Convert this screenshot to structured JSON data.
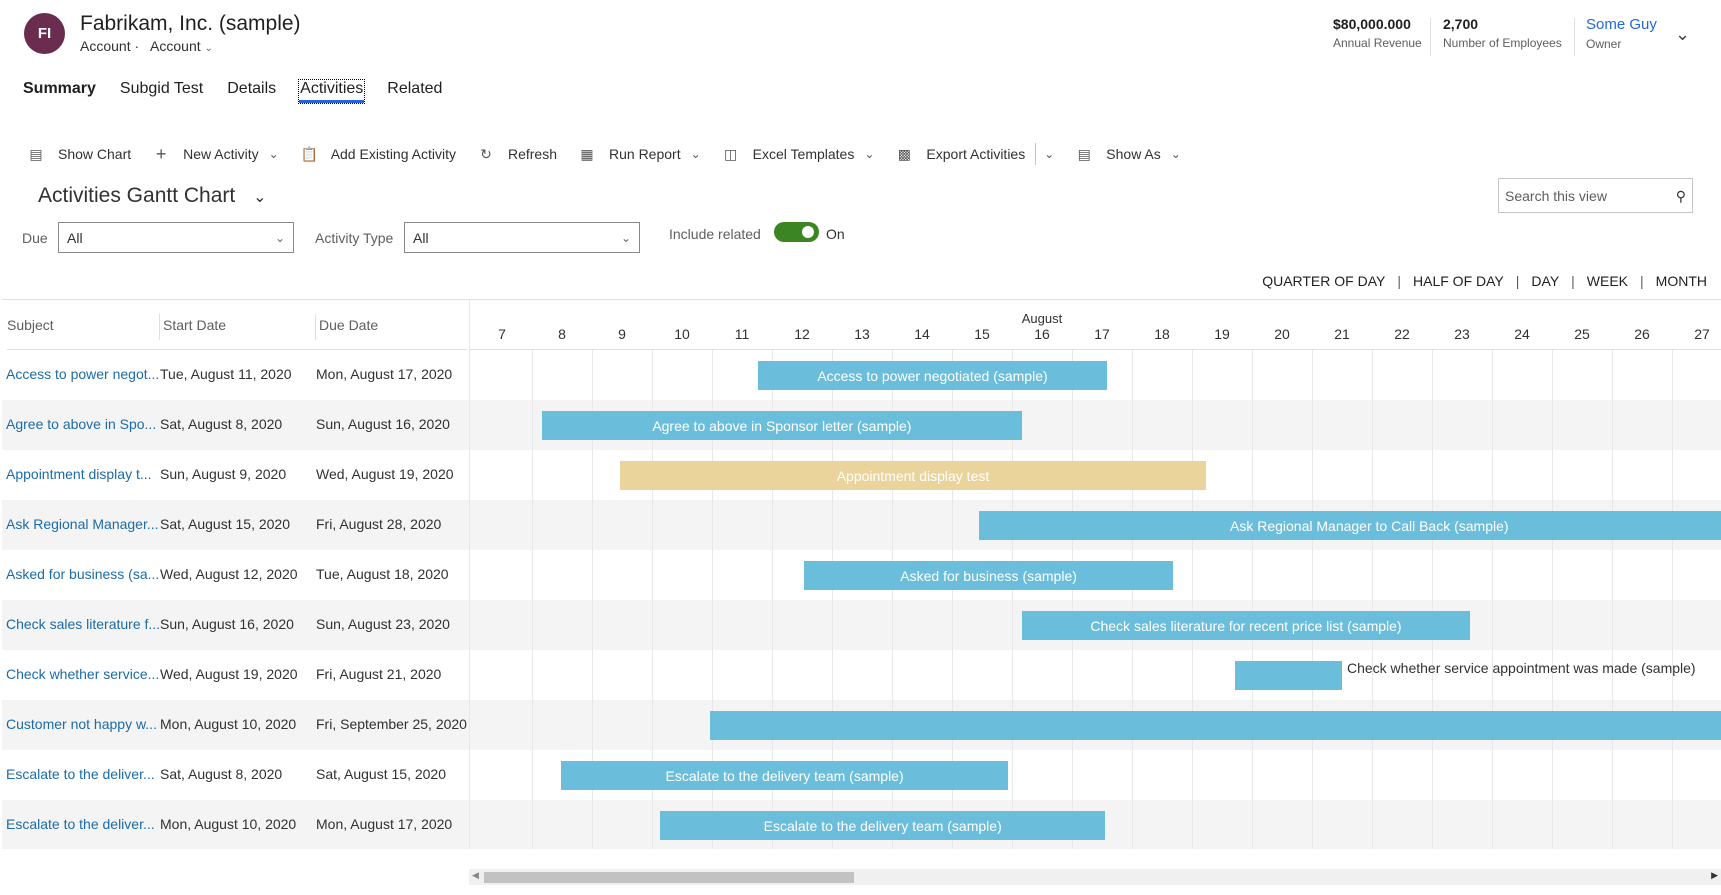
{
  "header": {
    "avatar_initials": "FI",
    "title": "Fabrikam, Inc. (sample)",
    "entity": "Account ·",
    "form": "Account",
    "kpis": [
      {
        "value": "$80,000.000",
        "label": "Annual Revenue"
      },
      {
        "value": "2,700",
        "label": "Number of Employees"
      },
      {
        "value": "Some Guy",
        "label": "Owner"
      }
    ]
  },
  "tabs": [
    "Summary",
    "Subgid Test",
    "Details",
    "Activities",
    "Related"
  ],
  "active_tab": "Activities",
  "toolbar": [
    {
      "icon": "chart-icon",
      "label": "Show Chart"
    },
    {
      "icon": "plus-icon",
      "label": "New Activity",
      "chevron": true
    },
    {
      "icon": "clipboard-add-icon",
      "label": "Add Existing Activity"
    },
    {
      "icon": "refresh-icon",
      "label": "Refresh"
    },
    {
      "icon": "report-icon",
      "label": "Run Report",
      "chevron": true
    },
    {
      "icon": "excel-template-icon",
      "label": "Excel Templates",
      "chevron": true
    },
    {
      "icon": "excel-export-icon",
      "label": "Export Activities"
    },
    {
      "icon": "chart-icon",
      "label": "Show As",
      "chevron": true
    }
  ],
  "view": {
    "title": "Activities Gantt Chart",
    "search_placeholder": "Search this view",
    "filters": {
      "due_label": "Due",
      "due_value": "All",
      "type_label": "Activity Type",
      "type_value": "All",
      "include_related_label": "Include related",
      "include_related_state": "On"
    },
    "scales": [
      "QUARTER OF DAY",
      "HALF OF DAY",
      "DAY",
      "WEEK",
      "MONTH"
    ]
  },
  "colors": {
    "task": "#6bbedb",
    "appointment": "#ebd39c",
    "link": "#1b6ba9",
    "toggle": "#3b8524"
  },
  "chart_data": {
    "type": "gantt",
    "columns": [
      "Subject",
      "Start Date",
      "Due Date"
    ],
    "month_label": "August",
    "x_ticks": [
      "7",
      "8",
      "9",
      "10",
      "11",
      "12",
      "13",
      "14",
      "15",
      "16",
      "17",
      "18",
      "19",
      "20",
      "21",
      "22",
      "23",
      "24",
      "25",
      "26",
      "27"
    ],
    "x_unit": "day of August 2020",
    "rows": [
      {
        "subject": "Access to power negot...",
        "start": "Tue, August 11, 2020",
        "due": "Mon, August 17, 2020",
        "bar_label": "Access to power negotiated (sample)",
        "bar_start": 11.77,
        "bar_end": 17.58,
        "kind": "task"
      },
      {
        "subject": "Agree to above in Spo...",
        "start": "Sat, August 8, 2020",
        "due": "Sun, August 16, 2020",
        "bar_label": "Agree to above in Sponsor letter (sample)",
        "bar_start": 8.17,
        "bar_end": 16.16,
        "kind": "task"
      },
      {
        "subject": "Appointment display t...",
        "start": "Sun, August 9, 2020",
        "due": "Wed, August 19, 2020",
        "bar_label": "Appointment display test",
        "bar_start": 9.47,
        "bar_end": 19.23,
        "kind": "appointment"
      },
      {
        "subject": "Ask Regional Manager...",
        "start": "Sat, August 15, 2020",
        "due": "Fri, August 28, 2020",
        "bar_label": "Ask Regional Manager to Call Back (sample)",
        "bar_start": 15.45,
        "bar_end": 28.46,
        "kind": "task"
      },
      {
        "subject": "Asked for business (sa...",
        "start": "Wed, August 12, 2020",
        "due": "Tue, August 18, 2020",
        "bar_label": "Asked for business (sample)",
        "bar_start": 12.54,
        "bar_end": 18.68,
        "kind": "task"
      },
      {
        "subject": "Check sales literature f...",
        "start": "Sun, August 16, 2020",
        "due": "Sun, August 23, 2020",
        "bar_label": "Check sales literature for recent price list (sample)",
        "bar_start": 16.16,
        "bar_end": 23.64,
        "kind": "task"
      },
      {
        "subject": "Check whether service...",
        "start": "Wed, August 19, 2020",
        "due": "Fri, August 21, 2020",
        "bar_label": "Check whether service appointment was made (sample)",
        "bar_start": 19.71,
        "bar_end": 21.5,
        "kind": "task",
        "label_outside": true
      },
      {
        "subject": "Customer not happy w...",
        "start": "Mon, August 10, 2020",
        "due": "Fri, September 25, 2020",
        "bar_label": "",
        "bar_start": 10.97,
        "bar_end": 56.5,
        "kind": "task"
      },
      {
        "subject": "Escalate to the deliver...",
        "start": "Sat, August 8, 2020",
        "due": "Sat, August 15, 2020",
        "bar_label": "Escalate to the delivery team (sample)",
        "bar_start": 8.48,
        "bar_end": 15.94,
        "kind": "task"
      },
      {
        "subject": "Escalate to the deliver...",
        "start": "Mon, August 10, 2020",
        "due": "Mon, August 17, 2020",
        "bar_label": "Escalate to the delivery team (sample)",
        "bar_start": 10.14,
        "bar_end": 17.55,
        "kind": "task"
      }
    ]
  }
}
